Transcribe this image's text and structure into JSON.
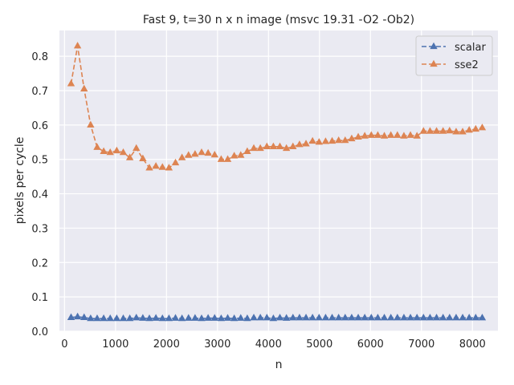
{
  "chart_data": {
    "type": "line",
    "title": "Fast 9, t=30  n x n image (msvc 19.31 -O2 -Ob2)",
    "xlabel": "n",
    "ylabel": "pixels per cycle",
    "xlim": [
      -100,
      8500
    ],
    "ylim": [
      0.0,
      0.875
    ],
    "xticks": [
      0,
      1000,
      2000,
      3000,
      4000,
      5000,
      6000,
      7000,
      8000
    ],
    "yticks": [
      0.0,
      0.1,
      0.2,
      0.3,
      0.4,
      0.5,
      0.6,
      0.7,
      0.8
    ],
    "xtick_labels": [
      "0",
      "1000",
      "2000",
      "3000",
      "4000",
      "5000",
      "6000",
      "7000",
      "8000"
    ],
    "ytick_labels": [
      "0.0",
      "0.1",
      "0.2",
      "0.3",
      "0.4",
      "0.5",
      "0.6",
      "0.7",
      "0.8"
    ],
    "grid": true,
    "legend_position": "top-right",
    "x": [
      128,
      256,
      384,
      512,
      640,
      768,
      896,
      1024,
      1152,
      1280,
      1408,
      1536,
      1664,
      1792,
      1920,
      2048,
      2176,
      2304,
      2432,
      2560,
      2688,
      2816,
      2944,
      3072,
      3200,
      3328,
      3456,
      3584,
      3712,
      3840,
      3968,
      4096,
      4224,
      4352,
      4480,
      4608,
      4736,
      4864,
      4992,
      5120,
      5248,
      5376,
      5504,
      5632,
      5760,
      5888,
      6016,
      6144,
      6272,
      6400,
      6528,
      6656,
      6784,
      6912,
      7040,
      7168,
      7296,
      7424,
      7552,
      7680,
      7808,
      7936,
      8064,
      8192
    ],
    "series": [
      {
        "name": "scalar",
        "color": "#4c72b0",
        "values": [
          0.04,
          0.042,
          0.04,
          0.037,
          0.037,
          0.037,
          0.037,
          0.037,
          0.037,
          0.037,
          0.039,
          0.038,
          0.037,
          0.038,
          0.037,
          0.037,
          0.038,
          0.037,
          0.038,
          0.038,
          0.037,
          0.038,
          0.038,
          0.037,
          0.038,
          0.037,
          0.038,
          0.037,
          0.039,
          0.039,
          0.039,
          0.037,
          0.039,
          0.038,
          0.039,
          0.039,
          0.039,
          0.039,
          0.039,
          0.039,
          0.039,
          0.039,
          0.039,
          0.039,
          0.039,
          0.039,
          0.039,
          0.039,
          0.039,
          0.039,
          0.039,
          0.039,
          0.039,
          0.039,
          0.039,
          0.039,
          0.039,
          0.039,
          0.039,
          0.039,
          0.039,
          0.039,
          0.039,
          0.039
        ]
      },
      {
        "name": "sse2",
        "color": "#dd8452",
        "values": [
          0.72,
          0.83,
          0.705,
          0.6,
          0.535,
          0.523,
          0.52,
          0.525,
          0.52,
          0.505,
          0.532,
          0.502,
          0.475,
          0.48,
          0.477,
          0.475,
          0.49,
          0.505,
          0.512,
          0.515,
          0.52,
          0.518,
          0.513,
          0.5,
          0.5,
          0.51,
          0.512,
          0.523,
          0.532,
          0.532,
          0.537,
          0.537,
          0.537,
          0.532,
          0.537,
          0.543,
          0.545,
          0.553,
          0.55,
          0.552,
          0.553,
          0.555,
          0.555,
          0.56,
          0.565,
          0.568,
          0.57,
          0.57,
          0.568,
          0.57,
          0.57,
          0.568,
          0.57,
          0.568,
          0.582,
          0.582,
          0.582,
          0.582,
          0.583,
          0.58,
          0.58,
          0.585,
          0.588,
          0.592
        ]
      }
    ]
  }
}
